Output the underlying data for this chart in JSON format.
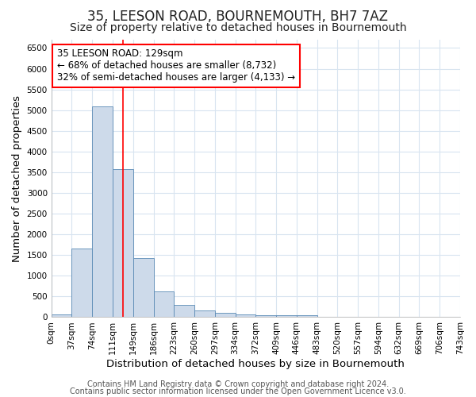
{
  "title": "35, LEESON ROAD, BOURNEMOUTH, BH7 7AZ",
  "subtitle": "Size of property relative to detached houses in Bournemouth",
  "xlabel": "Distribution of detached houses by size in Bournemouth",
  "ylabel": "Number of detached properties",
  "footer_line1": "Contains HM Land Registry data © Crown copyright and database right 2024.",
  "footer_line2": "Contains public sector information licensed under the Open Government Licence v3.0.",
  "annotation_line1": "35 LEESON ROAD: 129sqm",
  "annotation_line2": "← 68% of detached houses are smaller (8,732)",
  "annotation_line3": "32% of semi-detached houses are larger (4,133) →",
  "bar_color": "#cddaea",
  "bar_edge_color": "#5a8ab5",
  "red_line_x": 129,
  "bin_edges": [
    0,
    37,
    74,
    111,
    148,
    185,
    222,
    259,
    296,
    333,
    370,
    407,
    444,
    481,
    518,
    555,
    592,
    629,
    666,
    703,
    740
  ],
  "bin_labels": [
    "0sqm",
    "37sqm",
    "74sqm",
    "111sqm",
    "149sqm",
    "186sqm",
    "223sqm",
    "260sqm",
    "297sqm",
    "334sqm",
    "372sqm",
    "409sqm",
    "446sqm",
    "483sqm",
    "520sqm",
    "557sqm",
    "594sqm",
    "632sqm",
    "669sqm",
    "706sqm",
    "743sqm"
  ],
  "bar_heights": [
    75,
    1650,
    5080,
    3580,
    1420,
    615,
    295,
    155,
    105,
    75,
    52,
    42,
    40,
    0,
    0,
    0,
    0,
    0,
    0,
    0
  ],
  "ylim": [
    0,
    6700
  ],
  "yticks": [
    0,
    500,
    1000,
    1500,
    2000,
    2500,
    3000,
    3500,
    4000,
    4500,
    5000,
    5500,
    6000,
    6500
  ],
  "background_color": "#ffffff",
  "grid_color": "#d8e4f0",
  "title_fontsize": 12,
  "subtitle_fontsize": 10,
  "axis_label_fontsize": 9.5,
  "tick_fontsize": 7.5,
  "footer_fontsize": 7
}
